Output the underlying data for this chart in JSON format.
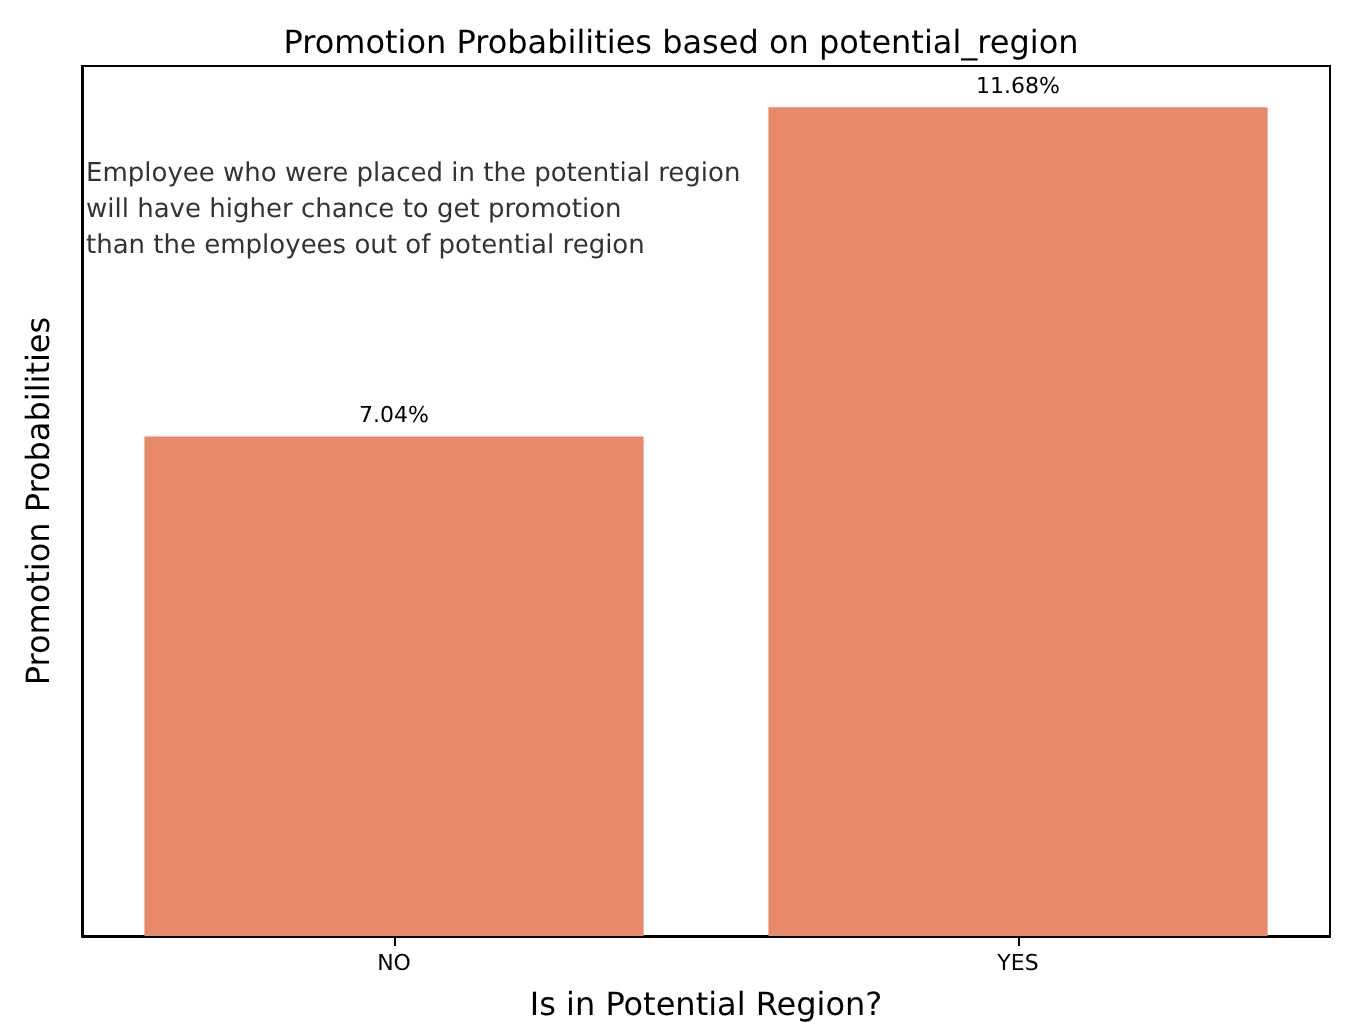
{
  "chart_data": {
    "type": "bar",
    "title": "Promotion Probabilities based on potential_region",
    "xlabel": "Is in Potential Region?",
    "ylabel": "Promotion Probabilities",
    "categories": [
      "NO",
      "YES"
    ],
    "values": [
      7.04,
      11.68
    ],
    "value_labels": [
      "7.04%",
      "11.68%"
    ],
    "color": "#e8896a",
    "ylim": [
      0,
      12.26
    ],
    "tick_labels": "x",
    "grid": false,
    "annotations": [
      "Employee who were placed in the potential region\nwill have higher chance to get promotion\nthan the employees out of potential region"
    ]
  }
}
